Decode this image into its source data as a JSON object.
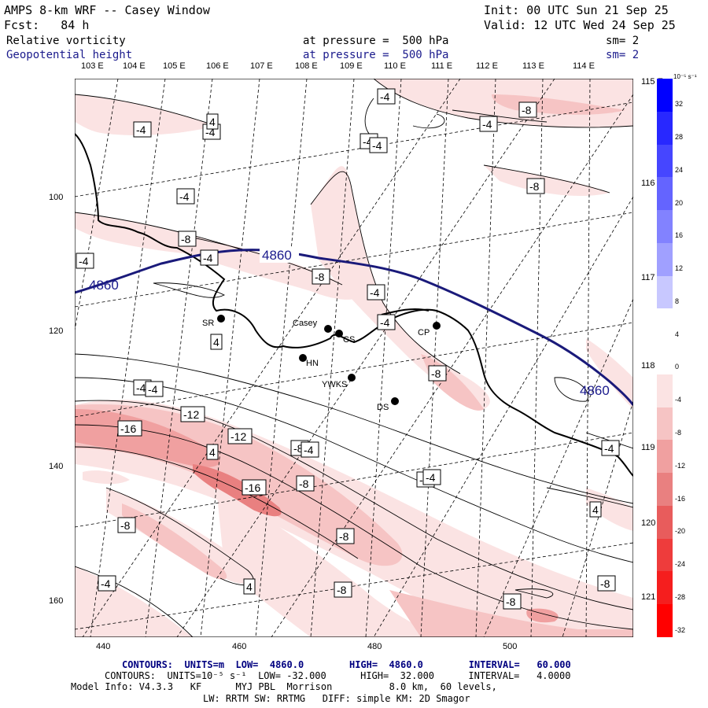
{
  "header": {
    "model_title": "AMPS 8-km WRF -- Casey Window",
    "init": "Init: 00 UTC Sun 21 Sep 25",
    "forecast": "Fcst:   84 h",
    "valid": "Valid: 12 UTC Wed 24 Sep 25",
    "field1_name": "Relative vorticity",
    "field1_level": "at pressure =  500 hPa",
    "field1_sm": "sm= 2",
    "field2_name": "Geopotential height",
    "field2_level": "at pressure =  500 hPa",
    "field2_sm": "sm= 2"
  },
  "top_longitudes": [
    "103 E",
    "104 E",
    "105 E",
    "106 E",
    "107 E",
    "108 E",
    "109 E",
    "110 E",
    "111 E",
    "112 E",
    "113 E",
    "114 E"
  ],
  "right_longitudes": [
    "115 E",
    "116 E",
    "117 E",
    "118 E",
    "119 E",
    "120 E",
    "121 E"
  ],
  "y_ticks": [
    "100",
    "120",
    "140",
    "160"
  ],
  "x_ticks": [
    "440",
    "460",
    "480",
    "500"
  ],
  "stations": [
    {
      "name": "SR"
    },
    {
      "name": "Casey"
    },
    {
      "name": "CS"
    },
    {
      "name": "HN"
    },
    {
      "name": "YWKS"
    },
    {
      "name": "DS"
    },
    {
      "name": "CP"
    }
  ],
  "height_contour_labels": [
    "4860",
    "4860",
    "4860"
  ],
  "vorticity_labels": [
    "-4",
    "-4",
    "-4",
    "-4",
    "-4",
    "-8",
    "-4",
    "-8",
    "-8",
    "-4",
    "-4",
    "4",
    "-4",
    "-8",
    "-8",
    "-4",
    "-12",
    "-16",
    "-12",
    "-8",
    "-16",
    "-8",
    "-4",
    "-4",
    "-8",
    "4",
    "-4",
    "-8",
    "-4",
    "-8",
    "-4",
    "-8",
    "-8",
    "4",
    "4",
    "-4",
    "-4",
    "-4",
    "4"
  ],
  "colorbar": {
    "unit": "10⁻⁵ s⁻¹",
    "labels": [
      "32",
      "28",
      "24",
      "20",
      "16",
      "12",
      "8",
      "4",
      "0",
      "-4",
      "-8",
      "-12",
      "-16",
      "-20",
      "-24",
      "-28",
      "-32"
    ]
  },
  "footer": {
    "height_contours": "CONTOURS:  UNITS=m  LOW=  4860.0        HIGH=  4860.0        INTERVAL=   60.000",
    "vort_contours": "CONTOURS:  UNITS=10⁻⁵ s⁻¹  LOW= -32.000      HIGH=  32.000      INTERVAL=   4.0000",
    "model_info": "Model Info: V4.3.3   KF      MYJ PBL  Morrison          8.0 km,  60 levels,",
    "physics": "LW: RRTM SW: RRTMG   DIFF: simple KM: 2D Smagor"
  },
  "colors": {
    "height_contour": "#1a1a7a",
    "coast": "#000000",
    "neg_light": "#fbe3e3",
    "neg_mid": "#f6c4c4",
    "neg_strong": "#f0a0a0",
    "neg_max": "#e98080"
  }
}
